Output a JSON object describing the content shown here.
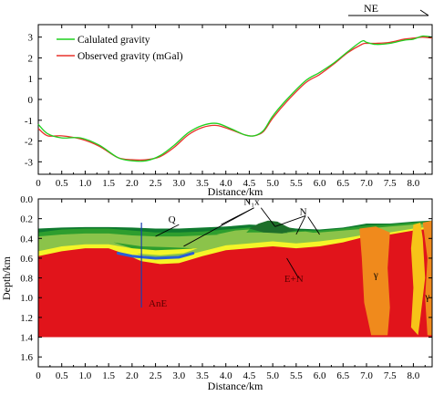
{
  "colors": {
    "calculated": "#1fd11f",
    "observed": "#e8322b",
    "basement": "#e1141b",
    "layer_q": "#8bc34a",
    "layer_mid": "#2e9e2e",
    "layer_top": "#0f7a2f",
    "n1x_cap": "#1e6f2a",
    "yellow": "#f5f528",
    "gold": "#f7c418",
    "granite": "#f08a1c",
    "blue": "#2a5fd6",
    "axis": "#000000"
  },
  "direction": {
    "label": "NE"
  },
  "chart_data": [
    {
      "type": "line",
      "xlabel": "Distance/km",
      "ylabel": "",
      "xlim": [
        0,
        8.4
      ],
      "ylim": [
        -3.6,
        3.6
      ],
      "xticks": [
        "0",
        "0.5",
        "1.0",
        "1.5",
        "2.0",
        "2.5",
        "3.0",
        "3.5",
        "4.0",
        "4.5",
        "5.0",
        "5.5",
        "6.0",
        "6.5",
        "7.0",
        "7.5",
        "8.0"
      ],
      "yticks": [
        "3",
        "2",
        "1",
        "0",
        "-1",
        "-2",
        "-3"
      ],
      "legend_position": "top-left",
      "series": [
        {
          "name": "Calulated gravity",
          "color_key": "calculated",
          "x": [
            0,
            0.2,
            0.5,
            0.9,
            1.3,
            1.7,
            2.0,
            2.3,
            2.6,
            2.9,
            3.2,
            3.5,
            3.8,
            4.1,
            4.4,
            4.6,
            4.8,
            5.0,
            5.3,
            5.7,
            6.0,
            6.3,
            6.6,
            6.9,
            7.0,
            7.2,
            7.5,
            7.8,
            8.0,
            8.2,
            8.4
          ],
          "y": [
            -1.2,
            -1.65,
            -1.85,
            -1.85,
            -2.2,
            -2.8,
            -2.95,
            -2.95,
            -2.7,
            -2.2,
            -1.6,
            -1.25,
            -1.15,
            -1.4,
            -1.7,
            -1.75,
            -1.5,
            -0.8,
            0.0,
            0.9,
            1.3,
            1.75,
            2.3,
            2.8,
            2.75,
            2.65,
            2.7,
            2.85,
            2.9,
            3.05,
            3.0
          ]
        },
        {
          "name": "Observed gravity (mGal)",
          "color_key": "observed",
          "x": [
            0,
            0.2,
            0.5,
            0.9,
            1.3,
            1.7,
            2.0,
            2.3,
            2.6,
            2.9,
            3.2,
            3.5,
            3.8,
            4.1,
            4.4,
            4.6,
            4.8,
            5.0,
            5.3,
            5.7,
            6.0,
            6.3,
            6.6,
            6.9,
            7.0,
            7.2,
            7.5,
            7.8,
            8.0,
            8.2,
            8.4
          ],
          "y": [
            -1.4,
            -1.75,
            -1.75,
            -1.9,
            -2.25,
            -2.8,
            -2.9,
            -2.9,
            -2.75,
            -2.3,
            -1.7,
            -1.35,
            -1.25,
            -1.45,
            -1.7,
            -1.75,
            -1.55,
            -0.9,
            -0.1,
            0.8,
            1.2,
            1.7,
            2.25,
            2.65,
            2.7,
            2.7,
            2.75,
            2.9,
            2.95,
            3.0,
            2.95
          ]
        }
      ]
    },
    {
      "type": "area",
      "xlabel": "Distance/km",
      "ylabel": "Depth/km",
      "xlim": [
        0,
        8.4
      ],
      "ylim": [
        0,
        1.7
      ],
      "y_inverted": true,
      "xticks": [
        "0",
        "0.5",
        "1.0",
        "1.5",
        "2.0",
        "2.5",
        "3.0",
        "3.5",
        "4.0",
        "4.5",
        "5.0",
        "5.5",
        "6.0",
        "6.5",
        "7.0",
        "7.5",
        "8.0"
      ],
      "yticks": [
        "0.0",
        "0.2",
        "0.4",
        "0.6",
        "0.8",
        "1.0",
        "1.2",
        "1.4",
        "1.6"
      ],
      "bottom_depth": 1.4,
      "layers": [
        {
          "key": "basement",
          "color_key": "basement",
          "top": [
            [
              0,
              0.58
            ],
            [
              0.5,
              0.53
            ],
            [
              1.0,
              0.5
            ],
            [
              1.5,
              0.5
            ],
            [
              1.8,
              0.55
            ],
            [
              2.2,
              0.63
            ],
            [
              2.6,
              0.66
            ],
            [
              3.0,
              0.65
            ],
            [
              3.5,
              0.58
            ],
            [
              4.0,
              0.52
            ],
            [
              4.5,
              0.5
            ],
            [
              5.0,
              0.48
            ],
            [
              5.5,
              0.5
            ],
            [
              6.0,
              0.48
            ],
            [
              6.5,
              0.44
            ],
            [
              7.0,
              0.38
            ],
            [
              7.5,
              0.36
            ],
            [
              8.0,
              0.32
            ],
            [
              8.4,
              0.3
            ]
          ]
        },
        {
          "key": "yellow",
          "color_key": "yellow",
          "top": [
            [
              0,
              0.53
            ],
            [
              0.5,
              0.48
            ],
            [
              1.0,
              0.46
            ],
            [
              1.5,
              0.46
            ],
            [
              1.8,
              0.5
            ],
            [
              2.2,
              0.57
            ],
            [
              2.6,
              0.6
            ],
            [
              3.0,
              0.59
            ],
            [
              3.5,
              0.53
            ],
            [
              4.0,
              0.47
            ],
            [
              4.5,
              0.45
            ],
            [
              5.0,
              0.43
            ],
            [
              5.5,
              0.45
            ],
            [
              6.0,
              0.43
            ],
            [
              6.5,
              0.4
            ],
            [
              7.0,
              0.36
            ],
            [
              7.5,
              0.34
            ],
            [
              8.0,
              0.3
            ],
            [
              8.4,
              0.28
            ]
          ]
        },
        {
          "key": "layer_q",
          "color_key": "layer_q",
          "top": [
            [
              0,
              0.38
            ],
            [
              0.5,
              0.36
            ],
            [
              1.0,
              0.35
            ],
            [
              1.5,
              0.35
            ],
            [
              2.0,
              0.37
            ],
            [
              2.5,
              0.38
            ],
            [
              3.0,
              0.38
            ],
            [
              3.5,
              0.37
            ],
            [
              4.0,
              0.36
            ],
            [
              4.5,
              0.34
            ],
            [
              5.0,
              0.34
            ],
            [
              5.5,
              0.35
            ],
            [
              6.0,
              0.34
            ],
            [
              6.5,
              0.32
            ],
            [
              7.0,
              0.3
            ],
            [
              7.5,
              0.28
            ],
            [
              8.0,
              0.26
            ],
            [
              8.4,
              0.25
            ]
          ]
        },
        {
          "key": "layer_mid",
          "color_key": "layer_mid",
          "top": [
            [
              0,
              0.34
            ],
            [
              0.5,
              0.31
            ],
            [
              1.0,
              0.3
            ],
            [
              1.5,
              0.3
            ],
            [
              2.0,
              0.32
            ],
            [
              2.5,
              0.34
            ],
            [
              3.0,
              0.34
            ],
            [
              3.5,
              0.33
            ],
            [
              4.0,
              0.31
            ],
            [
              4.5,
              0.29
            ],
            [
              5.0,
              0.29
            ],
            [
              5.5,
              0.32
            ],
            [
              6.0,
              0.32
            ],
            [
              6.5,
              0.3
            ],
            [
              7.0,
              0.27
            ],
            [
              7.5,
              0.26
            ],
            [
              8.0,
              0.24
            ],
            [
              8.4,
              0.23
            ]
          ]
        },
        {
          "key": "layer_top",
          "color_key": "layer_top",
          "top": [
            [
              0,
              0.3
            ],
            [
              0.5,
              0.29
            ],
            [
              1.0,
              0.285
            ],
            [
              1.5,
              0.285
            ],
            [
              2.0,
              0.29
            ],
            [
              2.5,
              0.3
            ],
            [
              3.0,
              0.3
            ],
            [
              3.5,
              0.29
            ],
            [
              4.0,
              0.28
            ],
            [
              4.5,
              0.26
            ],
            [
              5.0,
              0.27
            ],
            [
              5.5,
              0.3
            ],
            [
              6.0,
              0.31
            ],
            [
              6.5,
              0.29
            ],
            [
              7.0,
              0.25
            ],
            [
              7.5,
              0.25
            ],
            [
              8.0,
              0.23
            ],
            [
              8.4,
              0.22
            ]
          ]
        }
      ],
      "bodies": [
        {
          "key": "q_lens",
          "color_key": "layer_q",
          "points": [
            [
              1.4,
              0.38
            ],
            [
              2.0,
              0.47
            ],
            [
              2.6,
              0.5
            ],
            [
              3.2,
              0.47
            ],
            [
              3.6,
              0.4
            ],
            [
              3.0,
              0.42
            ],
            [
              2.4,
              0.43
            ],
            [
              1.8,
              0.41
            ]
          ]
        },
        {
          "key": "inner_lens",
          "color_key": "layer_mid",
          "points": [
            [
              1.6,
              0.44
            ],
            [
              2.2,
              0.53
            ],
            [
              2.8,
              0.55
            ],
            [
              3.3,
              0.5
            ],
            [
              2.8,
              0.49
            ],
            [
              2.2,
              0.48
            ]
          ]
        },
        {
          "key": "n1x_cap",
          "color_key": "n1x_cap",
          "points": [
            [
              4.5,
              0.3
            ],
            [
              4.7,
              0.25
            ],
            [
              4.9,
              0.22
            ],
            [
              5.1,
              0.23
            ],
            [
              5.3,
              0.28
            ],
            [
              5.5,
              0.32
            ],
            [
              5.2,
              0.35
            ],
            [
              4.8,
              0.34
            ]
          ]
        },
        {
          "key": "n_lens_right",
          "color_key": "layer_q",
          "points": [
            [
              5.3,
              0.34
            ],
            [
              5.7,
              0.33
            ],
            [
              6.1,
              0.36
            ],
            [
              5.9,
              0.4
            ],
            [
              5.5,
              0.4
            ]
          ]
        },
        {
          "key": "n_lens_left",
          "color_key": "layer_q",
          "points": [
            [
              3.8,
              0.36
            ],
            [
              4.2,
              0.32
            ],
            [
              4.5,
              0.31
            ],
            [
              4.4,
              0.36
            ],
            [
              4.1,
              0.38
            ]
          ]
        },
        {
          "key": "granite_1",
          "color_key": "granite",
          "points": [
            [
              6.85,
              0.3
            ],
            [
              7.2,
              0.28
            ],
            [
              7.5,
              0.34
            ],
            [
              7.45,
              0.7
            ],
            [
              7.5,
              1.1
            ],
            [
              7.45,
              1.38
            ],
            [
              7.1,
              1.38
            ],
            [
              6.95,
              1.05
            ],
            [
              6.9,
              0.6
            ]
          ]
        },
        {
          "key": "gold_1",
          "color_key": "gold",
          "points": [
            [
              8.0,
              0.26
            ],
            [
              8.15,
              0.24
            ],
            [
              8.2,
              0.4
            ],
            [
              8.25,
              0.8
            ],
            [
              8.15,
              1.2
            ],
            [
              8.1,
              1.38
            ],
            [
              7.95,
              1.3
            ],
            [
              8.0,
              0.9
            ],
            [
              7.95,
              0.5
            ]
          ]
        },
        {
          "key": "granite_2",
          "color_key": "granite",
          "points": [
            [
              8.2,
              0.24
            ],
            [
              8.4,
              0.22
            ],
            [
              8.4,
              1.38
            ],
            [
              8.3,
              1.38
            ],
            [
              8.25,
              1.0
            ],
            [
              8.3,
              0.6
            ]
          ]
        },
        {
          "key": "yellow_lens",
          "color_key": "yellow",
          "points": [
            [
              1.5,
              0.46
            ],
            [
              2.0,
              0.55
            ],
            [
              2.6,
              0.57
            ],
            [
              3.1,
              0.55
            ],
            [
              3.4,
              0.5
            ],
            [
              3.0,
              0.51
            ],
            [
              2.5,
              0.52
            ],
            [
              2.0,
              0.5
            ]
          ]
        }
      ],
      "blue_line": [
        [
          1.7,
          0.55
        ],
        [
          2.0,
          0.58
        ],
        [
          2.5,
          0.6
        ],
        [
          3.0,
          0.59
        ],
        [
          3.3,
          0.55
        ]
      ],
      "vertical_line": {
        "x": 2.2,
        "top": 0.24,
        "bottom": 1.1
      },
      "labels": [
        {
          "text": "Q",
          "x": 2.85,
          "y": 0.24,
          "style": "black"
        },
        {
          "text": "N₁x",
          "x": 4.55,
          "y": 0.06,
          "style": "black"
        },
        {
          "text": "N",
          "x": 5.65,
          "y": 0.16,
          "style": "black"
        },
        {
          "text": "E+N",
          "x": 5.45,
          "y": 0.84,
          "style": "dark"
        },
        {
          "text": "AnE",
          "x": 2.55,
          "y": 1.09,
          "style": "dark"
        },
        {
          "text": "γ",
          "x": 7.2,
          "y": 0.8,
          "style": "black"
        },
        {
          "text": "γ",
          "x": 8.3,
          "y": 1.02,
          "style": "black"
        }
      ],
      "leaders": [
        {
          "from": [
            3.0,
            0.26
          ],
          "to": [
            2.5,
            0.38
          ]
        },
        {
          "from": [
            4.6,
            0.09
          ],
          "to": [
            3.9,
            0.26
          ]
        },
        {
          "from": [
            4.6,
            0.09
          ],
          "to": [
            3.1,
            0.48
          ]
        },
        {
          "from": [
            4.75,
            0.09
          ],
          "to": [
            5.05,
            0.28
          ]
        },
        {
          "from": [
            5.7,
            0.17
          ],
          "to": [
            5.05,
            0.28
          ]
        },
        {
          "from": [
            5.7,
            0.17
          ],
          "to": [
            5.5,
            0.36
          ]
        },
        {
          "from": [
            5.75,
            0.18
          ],
          "to": [
            6.0,
            0.36
          ]
        },
        {
          "from": [
            5.55,
            0.8
          ],
          "to": [
            5.3,
            0.6
          ]
        }
      ]
    }
  ]
}
